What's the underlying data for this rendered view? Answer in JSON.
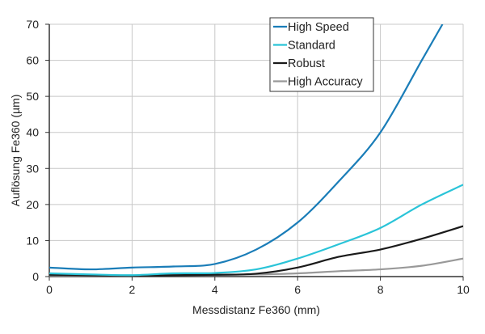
{
  "chart_data": {
    "type": "line",
    "title": "",
    "xlabel": "Messdistanz Fe360 (mm)",
    "ylabel": "Auflösung Fe360 (µm)",
    "xlim": [
      0,
      10
    ],
    "ylim": [
      0,
      70
    ],
    "xticks": [
      0,
      2,
      4,
      6,
      8,
      10
    ],
    "yticks": [
      0,
      10,
      20,
      30,
      40,
      50,
      60,
      70
    ],
    "grid": true,
    "legend_position": "top-right",
    "series": [
      {
        "name": "High Speed",
        "color": "#1a7db8",
        "x": [
          0,
          1,
          2,
          3,
          4,
          5,
          6,
          7,
          8,
          9,
          9.5
        ],
        "y": [
          2.5,
          2,
          2.5,
          2.8,
          3.5,
          7.5,
          15,
          26.5,
          40,
          60,
          70
        ]
      },
      {
        "name": "Standard",
        "color": "#2ac4d8",
        "x": [
          0,
          1,
          2,
          3,
          4,
          5,
          6,
          7,
          8,
          9,
          10
        ],
        "y": [
          0.9,
          0.6,
          0.4,
          0.9,
          1,
          2,
          5,
          9,
          13.5,
          20,
          25.5
        ]
      },
      {
        "name": "Robust",
        "color": "#1a1a1a",
        "x": [
          0,
          1,
          2,
          3,
          4,
          5,
          6,
          7,
          8,
          9,
          10
        ],
        "y": [
          0.5,
          0.4,
          0.3,
          0.4,
          0.5,
          0.8,
          2.5,
          5.5,
          7.5,
          10.5,
          14
        ]
      },
      {
        "name": "High Accuracy",
        "color": "#999999",
        "x": [
          0,
          1,
          2,
          3,
          4,
          5,
          6,
          7,
          8,
          9,
          10
        ],
        "y": [
          0.3,
          0.3,
          0.3,
          0.4,
          0.5,
          0.6,
          0.9,
          1.5,
          2,
          3,
          5
        ]
      }
    ]
  }
}
